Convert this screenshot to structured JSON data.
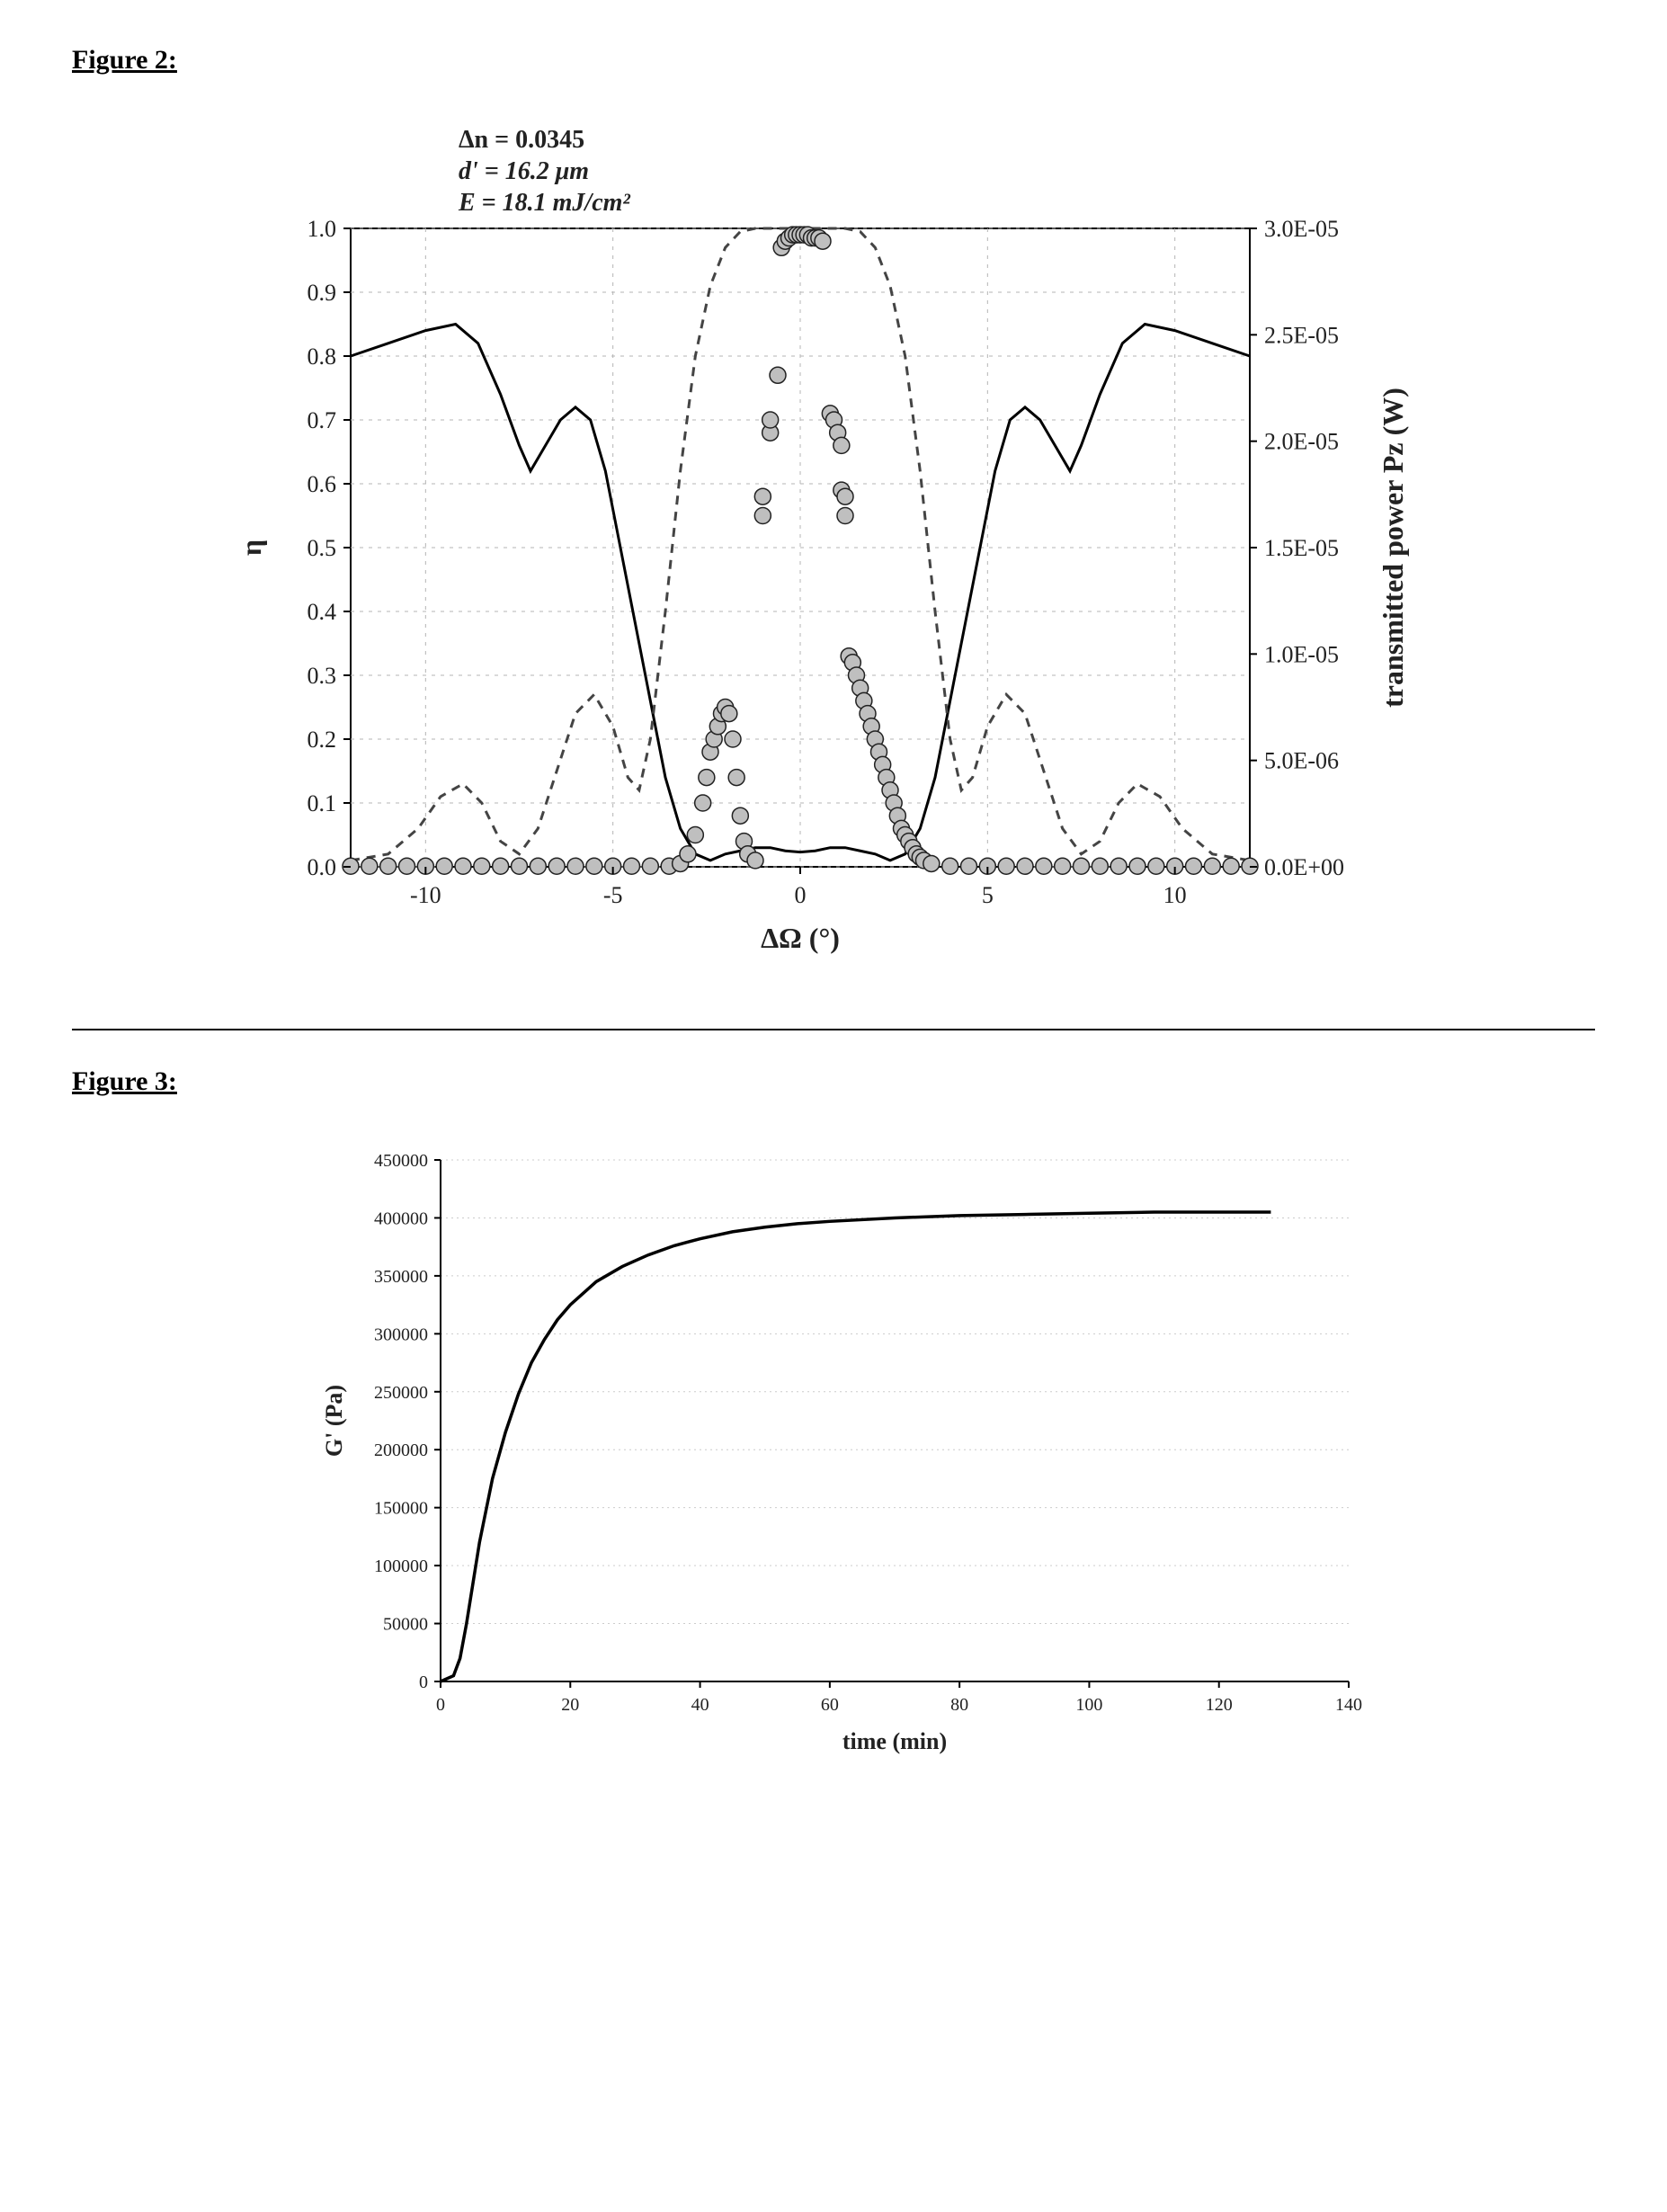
{
  "figure2": {
    "title": "Figure 2:",
    "annotations": {
      "delta_n": "Δn = 0.0345",
      "d_prime": "d' = 16.2 μm",
      "energy": "E = 18.1 mJ/cm²"
    },
    "chart": {
      "type": "line+scatter-dual-axis",
      "xlabel": "ΔΩ (°)",
      "ylabel_left": "η",
      "ylabel_right": "transmitted power Pz (W)",
      "xlim": [
        -12,
        12
      ],
      "ylim_left": [
        0.0,
        1.0
      ],
      "ylim_right": [
        0.0,
        3e-05
      ],
      "xticks": [
        -10,
        -5,
        0,
        5,
        10
      ],
      "yticks_left": [
        0.0,
        0.1,
        0.2,
        0.3,
        0.4,
        0.5,
        0.6,
        0.7,
        0.8,
        0.9,
        1.0
      ],
      "yticks_right_labels": [
        "0.0E+00",
        "5.0E-06",
        "1.0E-05",
        "1.5E-05",
        "2.0E-05",
        "2.5E-05",
        "3.0E-05"
      ],
      "yticks_right_values": [
        0,
        5e-06,
        1e-05,
        1.5e-05,
        2e-05,
        2.5e-05,
        3e-05
      ],
      "background_color": "#ffffff",
      "grid_color": "#b5b5b5",
      "axis_color": "#000000",
      "solid_line_color": "#000000",
      "dashed_line_color": "#444444",
      "scatter_fill": "#bfbfbf",
      "scatter_stroke": "#222222",
      "scatter_radius": 9,
      "line_width": 3,
      "dash_pattern": "10,8",
      "tick_fontsize": 26,
      "label_fontsize": 32,
      "solid_line_points": [
        [
          -12,
          0.8
        ],
        [
          -11,
          0.82
        ],
        [
          -10,
          0.84
        ],
        [
          -9.2,
          0.85
        ],
        [
          -8.6,
          0.82
        ],
        [
          -8.0,
          0.74
        ],
        [
          -7.5,
          0.66
        ],
        [
          -7.2,
          0.62
        ],
        [
          -6.8,
          0.66
        ],
        [
          -6.4,
          0.7
        ],
        [
          -6.0,
          0.72
        ],
        [
          -5.6,
          0.7
        ],
        [
          -5.2,
          0.62
        ],
        [
          -4.8,
          0.5
        ],
        [
          -4.4,
          0.38
        ],
        [
          -4.0,
          0.26
        ],
        [
          -3.6,
          0.14
        ],
        [
          -3.2,
          0.06
        ],
        [
          -2.8,
          0.02
        ],
        [
          -2.4,
          0.01
        ],
        [
          -2.0,
          0.02
        ],
        [
          -1.6,
          0.025
        ],
        [
          -1.2,
          0.03
        ],
        [
          -0.8,
          0.03
        ],
        [
          -0.4,
          0.025
        ],
        [
          0,
          0.023
        ],
        [
          0.4,
          0.025
        ],
        [
          0.8,
          0.03
        ],
        [
          1.2,
          0.03
        ],
        [
          1.6,
          0.025
        ],
        [
          2.0,
          0.02
        ],
        [
          2.4,
          0.01
        ],
        [
          2.8,
          0.02
        ],
        [
          3.2,
          0.06
        ],
        [
          3.6,
          0.14
        ],
        [
          4.0,
          0.26
        ],
        [
          4.4,
          0.38
        ],
        [
          4.8,
          0.5
        ],
        [
          5.2,
          0.62
        ],
        [
          5.6,
          0.7
        ],
        [
          6.0,
          0.72
        ],
        [
          6.4,
          0.7
        ],
        [
          6.8,
          0.66
        ],
        [
          7.2,
          0.62
        ],
        [
          7.5,
          0.66
        ],
        [
          8.0,
          0.74
        ],
        [
          8.6,
          0.82
        ],
        [
          9.2,
          0.85
        ],
        [
          10,
          0.84
        ],
        [
          11,
          0.82
        ],
        [
          12,
          0.8
        ]
      ],
      "dashed_line_points": [
        [
          -12,
          0.01
        ],
        [
          -11,
          0.02
        ],
        [
          -10.2,
          0.06
        ],
        [
          -9.6,
          0.11
        ],
        [
          -9.0,
          0.13
        ],
        [
          -8.5,
          0.1
        ],
        [
          -8.0,
          0.04
        ],
        [
          -7.5,
          0.02
        ],
        [
          -7.0,
          0.06
        ],
        [
          -6.5,
          0.15
        ],
        [
          -6.0,
          0.24
        ],
        [
          -5.5,
          0.27
        ],
        [
          -5.0,
          0.22
        ],
        [
          -4.6,
          0.14
        ],
        [
          -4.3,
          0.12
        ],
        [
          -4.0,
          0.2
        ],
        [
          -3.6,
          0.4
        ],
        [
          -3.2,
          0.62
        ],
        [
          -2.8,
          0.8
        ],
        [
          -2.4,
          0.91
        ],
        [
          -2.0,
          0.97
        ],
        [
          -1.6,
          0.995
        ],
        [
          -1.2,
          1.0
        ],
        [
          -0.8,
          1.0
        ],
        [
          -0.4,
          1.0
        ],
        [
          0,
          1.0
        ],
        [
          0.4,
          1.0
        ],
        [
          0.8,
          1.0
        ],
        [
          1.2,
          1.0
        ],
        [
          1.6,
          0.995
        ],
        [
          2.0,
          0.97
        ],
        [
          2.4,
          0.91
        ],
        [
          2.8,
          0.8
        ],
        [
          3.2,
          0.62
        ],
        [
          3.6,
          0.4
        ],
        [
          4.0,
          0.2
        ],
        [
          4.3,
          0.12
        ],
        [
          4.6,
          0.14
        ],
        [
          5.0,
          0.22
        ],
        [
          5.5,
          0.27
        ],
        [
          6.0,
          0.24
        ],
        [
          6.5,
          0.15
        ],
        [
          7.0,
          0.06
        ],
        [
          7.5,
          0.02
        ],
        [
          8.0,
          0.04
        ],
        [
          8.5,
          0.1
        ],
        [
          9.0,
          0.13
        ],
        [
          9.6,
          0.11
        ],
        [
          10.2,
          0.06
        ],
        [
          11,
          0.02
        ],
        [
          12,
          0.01
        ]
      ],
      "scatter_points": [
        [
          -12,
          0.001
        ],
        [
          -11.5,
          0.001
        ],
        [
          -11,
          0.001
        ],
        [
          -10.5,
          0.001
        ],
        [
          -10,
          0.001
        ],
        [
          -9.5,
          0.001
        ],
        [
          -9,
          0.001
        ],
        [
          -8.5,
          0.001
        ],
        [
          -8,
          0.001
        ],
        [
          -7.5,
          0.001
        ],
        [
          -7,
          0.001
        ],
        [
          -6.5,
          0.001
        ],
        [
          -6,
          0.001
        ],
        [
          -5.5,
          0.001
        ],
        [
          -5,
          0.001
        ],
        [
          -4.5,
          0.001
        ],
        [
          -4,
          0.001
        ],
        [
          -3.5,
          0.001
        ],
        [
          -3.2,
          0.005
        ],
        [
          -3.0,
          0.02
        ],
        [
          -2.8,
          0.05
        ],
        [
          -2.6,
          0.1
        ],
        [
          -2.5,
          0.14
        ],
        [
          -2.4,
          0.18
        ],
        [
          -2.3,
          0.2
        ],
        [
          -2.2,
          0.22
        ],
        [
          -2.1,
          0.24
        ],
        [
          -2.0,
          0.25
        ],
        [
          -1.9,
          0.24
        ],
        [
          -1.8,
          0.2
        ],
        [
          -1.7,
          0.14
        ],
        [
          -1.6,
          0.08
        ],
        [
          -1.5,
          0.04
        ],
        [
          -1.4,
          0.02
        ],
        [
          -1.2,
          0.01
        ],
        [
          -1.0,
          0.55
        ],
        [
          -1.0,
          0.58
        ],
        [
          -0.8,
          0.68
        ],
        [
          -0.8,
          0.7
        ],
        [
          -0.6,
          0.77
        ],
        [
          -0.5,
          0.97
        ],
        [
          -0.4,
          0.98
        ],
        [
          -0.3,
          0.985
        ],
        [
          -0.2,
          0.99
        ],
        [
          -0.1,
          0.99
        ],
        [
          0,
          0.99
        ],
        [
          0.1,
          0.99
        ],
        [
          0.2,
          0.99
        ],
        [
          0.3,
          0.985
        ],
        [
          0.4,
          0.985
        ],
        [
          0.5,
          0.985
        ],
        [
          0.6,
          0.98
        ],
        [
          0.8,
          0.71
        ],
        [
          0.9,
          0.7
        ],
        [
          1.0,
          0.68
        ],
        [
          1.1,
          0.66
        ],
        [
          1.1,
          0.59
        ],
        [
          1.2,
          0.58
        ],
        [
          1.2,
          0.55
        ],
        [
          1.3,
          0.33
        ],
        [
          1.4,
          0.32
        ],
        [
          1.5,
          0.3
        ],
        [
          1.6,
          0.28
        ],
        [
          1.7,
          0.26
        ],
        [
          1.8,
          0.24
        ],
        [
          1.9,
          0.22
        ],
        [
          2.0,
          0.2
        ],
        [
          2.1,
          0.18
        ],
        [
          2.2,
          0.16
        ],
        [
          2.3,
          0.14
        ],
        [
          2.4,
          0.12
        ],
        [
          2.5,
          0.1
        ],
        [
          2.6,
          0.08
        ],
        [
          2.7,
          0.06
        ],
        [
          2.8,
          0.05
        ],
        [
          2.9,
          0.04
        ],
        [
          3.0,
          0.03
        ],
        [
          3.1,
          0.02
        ],
        [
          3.2,
          0.015
        ],
        [
          3.3,
          0.01
        ],
        [
          3.5,
          0.005
        ],
        [
          4,
          0.001
        ],
        [
          4.5,
          0.001
        ],
        [
          5,
          0.001
        ],
        [
          5.5,
          0.001
        ],
        [
          6,
          0.001
        ],
        [
          6.5,
          0.001
        ],
        [
          7,
          0.001
        ],
        [
          7.5,
          0.001
        ],
        [
          8,
          0.001
        ],
        [
          8.5,
          0.001
        ],
        [
          9,
          0.001
        ],
        [
          9.5,
          0.001
        ],
        [
          10,
          0.001
        ],
        [
          10.5,
          0.001
        ],
        [
          11,
          0.001
        ],
        [
          11.5,
          0.001
        ],
        [
          12,
          0.001
        ]
      ]
    }
  },
  "figure3": {
    "title": "Figure 3:",
    "chart": {
      "type": "line",
      "xlabel": "time (min)",
      "ylabel": "G' (Pa)",
      "xlim": [
        0,
        140
      ],
      "ylim": [
        0,
        450000
      ],
      "xticks": [
        0,
        20,
        40,
        60,
        80,
        100,
        120,
        140
      ],
      "yticks": [
        0,
        50000,
        100000,
        150000,
        200000,
        250000,
        300000,
        350000,
        400000,
        450000
      ],
      "background_color": "#ffffff",
      "grid_color": "#cccccc",
      "axis_color": "#000000",
      "line_color": "#000000",
      "line_width": 3.5,
      "tick_fontsize": 20,
      "label_fontsize": 26,
      "line_points": [
        [
          0,
          0
        ],
        [
          2,
          5000
        ],
        [
          3,
          20000
        ],
        [
          4,
          50000
        ],
        [
          5,
          85000
        ],
        [
          6,
          120000
        ],
        [
          8,
          175000
        ],
        [
          10,
          215000
        ],
        [
          12,
          248000
        ],
        [
          14,
          275000
        ],
        [
          16,
          295000
        ],
        [
          18,
          312000
        ],
        [
          20,
          325000
        ],
        [
          24,
          345000
        ],
        [
          28,
          358000
        ],
        [
          32,
          368000
        ],
        [
          36,
          376000
        ],
        [
          40,
          382000
        ],
        [
          45,
          388000
        ],
        [
          50,
          392000
        ],
        [
          55,
          395000
        ],
        [
          60,
          397000
        ],
        [
          70,
          400000
        ],
        [
          80,
          402000
        ],
        [
          90,
          403000
        ],
        [
          100,
          404000
        ],
        [
          110,
          405000
        ],
        [
          120,
          405000
        ],
        [
          128,
          405000
        ]
      ]
    }
  }
}
